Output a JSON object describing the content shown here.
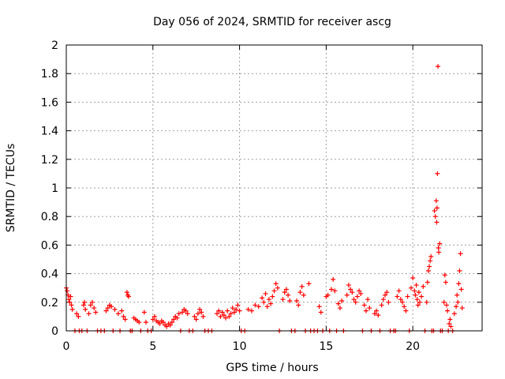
{
  "chart_data": {
    "type": "scatter",
    "title": "Day 056 of 2024, SRMTID for receiver ascg",
    "xlabel": "GPS time / hours",
    "ylabel": "SRMTID / TECUs",
    "xlim": [
      0,
      24
    ],
    "ylim": [
      0,
      2
    ],
    "xticks": [
      0,
      5,
      10,
      15,
      20
    ],
    "xtick_labels": [
      "0",
      "5",
      "10",
      "15",
      "20"
    ],
    "yticks": [
      0,
      0.2,
      0.4,
      0.6,
      0.8,
      1,
      1.2,
      1.4,
      1.6,
      1.8,
      2
    ],
    "ytick_labels": [
      "0",
      "0.2",
      "0.4",
      "0.6",
      "0.8",
      "1",
      "1.2",
      "1.4",
      "1.6",
      "1.8",
      "2"
    ],
    "grid": true,
    "marker": "plus",
    "color": "#ff0000",
    "series": [
      {
        "name": "SRMTID",
        "points": [
          [
            0.0,
            0.3
          ],
          [
            0.05,
            0.28
          ],
          [
            0.1,
            0.25
          ],
          [
            0.15,
            0.22
          ],
          [
            0.2,
            0.2
          ],
          [
            0.25,
            0.24
          ],
          [
            0.3,
            0.18
          ],
          [
            0.35,
            0.15
          ],
          [
            0.5,
            0.0
          ],
          [
            0.6,
            0.12
          ],
          [
            0.7,
            0.1
          ],
          [
            0.75,
            0.0
          ],
          [
            0.9,
            0.0
          ],
          [
            1.0,
            0.18
          ],
          [
            1.05,
            0.2
          ],
          [
            1.1,
            0.15
          ],
          [
            1.2,
            0.0
          ],
          [
            1.3,
            0.12
          ],
          [
            1.4,
            0.18
          ],
          [
            1.5,
            0.2
          ],
          [
            1.6,
            0.16
          ],
          [
            1.7,
            0.13
          ],
          [
            1.8,
            0.0
          ],
          [
            2.0,
            0.0
          ],
          [
            2.2,
            0.0
          ],
          [
            2.3,
            0.14
          ],
          [
            2.4,
            0.16
          ],
          [
            2.5,
            0.18
          ],
          [
            2.6,
            0.17
          ],
          [
            2.7,
            0.0
          ],
          [
            2.8,
            0.15
          ],
          [
            3.0,
            0.12
          ],
          [
            3.1,
            0.0
          ],
          [
            3.2,
            0.14
          ],
          [
            3.3,
            0.1
          ],
          [
            3.4,
            0.08
          ],
          [
            3.5,
            0.27
          ],
          [
            3.55,
            0.25
          ],
          [
            3.6,
            0.24
          ],
          [
            3.7,
            0.0
          ],
          [
            3.8,
            0.0
          ],
          [
            3.9,
            0.09
          ],
          [
            4.0,
            0.08
          ],
          [
            4.1,
            0.07
          ],
          [
            4.2,
            0.06
          ],
          [
            4.3,
            0.0
          ],
          [
            4.5,
            0.13
          ],
          [
            4.6,
            0.06
          ],
          [
            4.7,
            0.0
          ],
          [
            4.9,
            0.0
          ],
          [
            5.0,
            0.08
          ],
          [
            5.1,
            0.1
          ],
          [
            5.2,
            0.07
          ],
          [
            5.3,
            0.06
          ],
          [
            5.4,
            0.05
          ],
          [
            5.5,
            0.07
          ],
          [
            5.6,
            0.06
          ],
          [
            5.7,
            0.04
          ],
          [
            5.8,
            0.03
          ],
          [
            5.9,
            0.05
          ],
          [
            6.0,
            0.04
          ],
          [
            6.1,
            0.06
          ],
          [
            6.2,
            0.08
          ],
          [
            6.3,
            0.1
          ],
          [
            6.4,
            0.09
          ],
          [
            6.5,
            0.12
          ],
          [
            6.6,
            0.0
          ],
          [
            6.7,
            0.13
          ],
          [
            6.8,
            0.15
          ],
          [
            6.9,
            0.14
          ],
          [
            7.0,
            0.12
          ],
          [
            7.1,
            0.0
          ],
          [
            7.3,
            0.0
          ],
          [
            7.4,
            0.1
          ],
          [
            7.5,
            0.08
          ],
          [
            7.6,
            0.12
          ],
          [
            7.7,
            0.15
          ],
          [
            7.8,
            0.13
          ],
          [
            7.9,
            0.1
          ],
          [
            8.0,
            0.0
          ],
          [
            8.2,
            0.0
          ],
          [
            8.4,
            0.0
          ],
          [
            8.7,
            0.12
          ],
          [
            8.8,
            0.14
          ],
          [
            8.9,
            0.1
          ],
          [
            9.0,
            0.13
          ],
          [
            9.1,
            0.11
          ],
          [
            9.2,
            0.09
          ],
          [
            9.3,
            0.14
          ],
          [
            9.4,
            0.1
          ],
          [
            9.5,
            0.12
          ],
          [
            9.6,
            0.16
          ],
          [
            9.7,
            0.13
          ],
          [
            9.8,
            0.15
          ],
          [
            9.9,
            0.18
          ],
          [
            10.0,
            0.14
          ],
          [
            10.1,
            0.0
          ],
          [
            10.3,
            0.0
          ],
          [
            10.5,
            0.15
          ],
          [
            10.7,
            0.14
          ],
          [
            10.9,
            0.18
          ],
          [
            11.1,
            0.17
          ],
          [
            11.3,
            0.23
          ],
          [
            11.4,
            0.2
          ],
          [
            11.5,
            0.26
          ],
          [
            11.6,
            0.17
          ],
          [
            11.7,
            0.22
          ],
          [
            11.8,
            0.19
          ],
          [
            11.9,
            0.24
          ],
          [
            12.0,
            0.28
          ],
          [
            12.1,
            0.33
          ],
          [
            12.2,
            0.3
          ],
          [
            12.3,
            0.0
          ],
          [
            12.5,
            0.22
          ],
          [
            12.6,
            0.27
          ],
          [
            12.7,
            0.29
          ],
          [
            12.8,
            0.25
          ],
          [
            12.9,
            0.21
          ],
          [
            13.0,
            0.0
          ],
          [
            13.2,
            0.0
          ],
          [
            13.3,
            0.21
          ],
          [
            13.4,
            0.18
          ],
          [
            13.5,
            0.27
          ],
          [
            13.6,
            0.31
          ],
          [
            13.7,
            0.25
          ],
          [
            13.8,
            0.0
          ],
          [
            14.0,
            0.33
          ],
          [
            14.1,
            0.0
          ],
          [
            14.3,
            0.0
          ],
          [
            14.5,
            0.0
          ],
          [
            14.6,
            0.17
          ],
          [
            14.7,
            0.13
          ],
          [
            14.8,
            0.0
          ],
          [
            15.0,
            0.24
          ],
          [
            15.1,
            0.25
          ],
          [
            15.2,
            0.0
          ],
          [
            15.3,
            0.29
          ],
          [
            15.4,
            0.36
          ],
          [
            15.5,
            0.28
          ],
          [
            15.6,
            0.0
          ],
          [
            15.7,
            0.19
          ],
          [
            15.8,
            0.16
          ],
          [
            15.9,
            0.21
          ],
          [
            16.0,
            0.0
          ],
          [
            16.2,
            0.25
          ],
          [
            16.3,
            0.32
          ],
          [
            16.4,
            0.29
          ],
          [
            16.5,
            0.27
          ],
          [
            16.6,
            0.22
          ],
          [
            16.7,
            0.2
          ],
          [
            16.8,
            0.24
          ],
          [
            16.9,
            0.28
          ],
          [
            17.0,
            0.26
          ],
          [
            17.1,
            0.0
          ],
          [
            17.2,
            0.18
          ],
          [
            17.3,
            0.14
          ],
          [
            17.4,
            0.22
          ],
          [
            17.5,
            0.16
          ],
          [
            17.6,
            0.0
          ],
          [
            17.8,
            0.12
          ],
          [
            17.9,
            0.14
          ],
          [
            18.0,
            0.11
          ],
          [
            18.1,
            0.0
          ],
          [
            18.2,
            0.18
          ],
          [
            18.3,
            0.22
          ],
          [
            18.4,
            0.25
          ],
          [
            18.5,
            0.27
          ],
          [
            18.6,
            0.2
          ],
          [
            18.7,
            0.0
          ],
          [
            18.9,
            0.0
          ],
          [
            19.0,
            0.0
          ],
          [
            19.1,
            0.24
          ],
          [
            19.2,
            0.28
          ],
          [
            19.3,
            0.22
          ],
          [
            19.4,
            0.2
          ],
          [
            19.5,
            0.17
          ],
          [
            19.6,
            0.14
          ],
          [
            19.7,
            0.24
          ],
          [
            19.8,
            0.0
          ],
          [
            19.9,
            0.3
          ],
          [
            20.0,
            0.37
          ],
          [
            20.1,
            0.28
          ],
          [
            20.15,
            0.25
          ],
          [
            20.2,
            0.32
          ],
          [
            20.25,
            0.22
          ],
          [
            20.3,
            0.18
          ],
          [
            20.35,
            0.27
          ],
          [
            20.4,
            0.2
          ],
          [
            20.5,
            0.24
          ],
          [
            20.6,
            0.31
          ],
          [
            20.7,
            0.0
          ],
          [
            20.8,
            0.2
          ],
          [
            20.85,
            0.34
          ],
          [
            20.9,
            0.42
          ],
          [
            20.95,
            0.45
          ],
          [
            21.0,
            0.49
          ],
          [
            21.05,
            0.52
          ],
          [
            21.1,
            0.0
          ],
          [
            21.2,
            0.0
          ],
          [
            21.25,
            0.84
          ],
          [
            21.3,
            0.8
          ],
          [
            21.35,
            0.91
          ],
          [
            21.38,
            0.76
          ],
          [
            21.4,
            0.86
          ],
          [
            21.42,
            1.1
          ],
          [
            21.45,
            1.85
          ],
          [
            21.48,
            0.58
          ],
          [
            21.5,
            0.55
          ],
          [
            21.55,
            0.61
          ],
          [
            21.6,
            0.0
          ],
          [
            21.7,
            0.0
          ],
          [
            21.8,
            0.2
          ],
          [
            21.85,
            0.39
          ],
          [
            21.9,
            0.34
          ],
          [
            21.95,
            0.18
          ],
          [
            22.0,
            0.14
          ],
          [
            22.05,
            0.0
          ],
          [
            22.1,
            0.05
          ],
          [
            22.15,
            0.08
          ],
          [
            22.2,
            0.03
          ],
          [
            22.3,
            0.0
          ],
          [
            22.4,
            0.12
          ],
          [
            22.5,
            0.17
          ],
          [
            22.55,
            0.25
          ],
          [
            22.6,
            0.2
          ],
          [
            22.65,
            0.33
          ],
          [
            22.7,
            0.42
          ],
          [
            22.75,
            0.54
          ],
          [
            22.8,
            0.29
          ],
          [
            22.85,
            0.16
          ]
        ]
      }
    ]
  }
}
